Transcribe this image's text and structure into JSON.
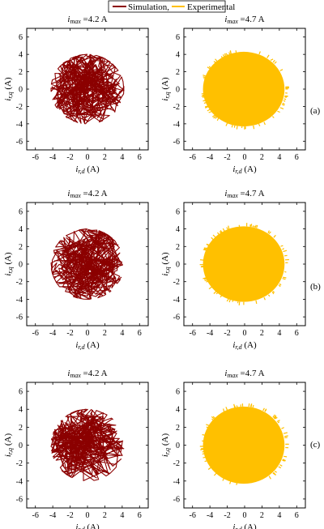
{
  "legend": {
    "items": [
      {
        "label": "Simulation,",
        "color": "#8b0000"
      },
      {
        "label": "Experimental",
        "color": "#ffc000"
      }
    ]
  },
  "row_labels": [
    "(a)",
    "(b)",
    "(c)"
  ],
  "colors": {
    "simulation": "#8b0000",
    "experimental": "#ffc000"
  },
  "chart_data": [
    {
      "type": "scatter",
      "row": "(a)",
      "series": "Simulation",
      "title_main": "i",
      "title_sub": "max",
      "title_rest": " =4.2 A",
      "xlabel_main": "i",
      "xlabel_sub": "r,d",
      "xlabel_unit": " (A)",
      "ylabel_main": "i",
      "ylabel_sub": "r,q",
      "ylabel_unit": " (A)",
      "xlim": [
        -7,
        7
      ],
      "ylim": [
        -7,
        7
      ],
      "xticks": [
        "-6",
        "-4",
        "-2",
        "0",
        "2",
        "4",
        "6"
      ],
      "yticks": [
        "6",
        "4",
        "2",
        "0",
        "-2",
        "-4",
        "-6"
      ],
      "x_extent": [
        -4.2,
        4.2
      ],
      "y_extent": [
        -4.0,
        4.0
      ]
    },
    {
      "type": "scatter",
      "row": "(a)",
      "series": "Experimental",
      "title_main": "i",
      "title_sub": "max",
      "title_rest": " =4.7 A",
      "xlabel_main": "i",
      "xlabel_sub": "r,d",
      "xlabel_unit": " (A)",
      "ylabel_main": "i",
      "ylabel_sub": "r,q",
      "ylabel_unit": " (A)",
      "xlim": [
        -7,
        7
      ],
      "ylim": [
        -7,
        7
      ],
      "xticks": [
        "-6",
        "-4",
        "-2",
        "0",
        "2",
        "4",
        "6"
      ],
      "yticks": [
        "6",
        "4",
        "2",
        "0",
        "-2",
        "-4",
        "-6"
      ],
      "x_extent": [
        -4.7,
        4.7
      ],
      "y_extent": [
        -4.3,
        4.3
      ]
    },
    {
      "type": "scatter",
      "row": "(b)",
      "series": "Simulation",
      "title_main": "i",
      "title_sub": "max",
      "title_rest": " =4.2 A",
      "xlabel_main": "i",
      "xlabel_sub": "r,d",
      "xlabel_unit": " (A)",
      "ylabel_main": "i",
      "ylabel_sub": "r,q",
      "ylabel_unit": " (A)",
      "xlim": [
        -7,
        7
      ],
      "ylim": [
        -7,
        7
      ],
      "xticks": [
        "-6",
        "-4",
        "-2",
        "0",
        "2",
        "4",
        "6"
      ],
      "yticks": [
        "6",
        "4",
        "2",
        "0",
        "-2",
        "-4",
        "-6"
      ],
      "x_extent": [
        -4.2,
        4.2
      ],
      "y_extent": [
        -4.0,
        4.0
      ]
    },
    {
      "type": "scatter",
      "row": "(b)",
      "series": "Experimental",
      "title_main": "i",
      "title_sub": "max",
      "title_rest": " =4.7 A",
      "xlabel_main": "i",
      "xlabel_sub": "r,d",
      "xlabel_unit": " (A)",
      "ylabel_main": "i",
      "ylabel_sub": "r,q",
      "ylabel_unit": " (A)",
      "xlim": [
        -7,
        7
      ],
      "ylim": [
        -7,
        7
      ],
      "xticks": [
        "-6",
        "-4",
        "-2",
        "0",
        "2",
        "4",
        "6"
      ],
      "yticks": [
        "6",
        "4",
        "2",
        "0",
        "-2",
        "-4",
        "-6"
      ],
      "x_extent": [
        -4.7,
        4.7
      ],
      "y_extent": [
        -4.3,
        4.3
      ]
    },
    {
      "type": "scatter",
      "row": "(c)",
      "series": "Simulation",
      "title_main": "i",
      "title_sub": "max",
      "title_rest": " =4.2 A",
      "xlabel_main": "i",
      "xlabel_sub": "r,d",
      "xlabel_unit": " (A)",
      "ylabel_main": "i",
      "ylabel_sub": "r,q",
      "ylabel_unit": " (A)",
      "xlim": [
        -7,
        7
      ],
      "ylim": [
        -7,
        7
      ],
      "xticks": [
        "-6",
        "-4",
        "-2",
        "0",
        "2",
        "4",
        "6"
      ],
      "yticks": [
        "6",
        "4",
        "2",
        "0",
        "-2",
        "-4",
        "-6"
      ],
      "x_extent": [
        -4.2,
        4.2
      ],
      "y_extent": [
        -4.0,
        4.0
      ]
    },
    {
      "type": "scatter",
      "row": "(c)",
      "series": "Experimental",
      "title_main": "i",
      "title_sub": "max",
      "title_rest": " =4.7 A",
      "xlabel_main": "i",
      "xlabel_sub": "r,d",
      "xlabel_unit": " (A)",
      "ylabel_main": "i",
      "ylabel_sub": "r,q",
      "ylabel_unit": " (A)",
      "xlim": [
        -7,
        7
      ],
      "ylim": [
        -7,
        7
      ],
      "xticks": [
        "-6",
        "-4",
        "-2",
        "0",
        "2",
        "4",
        "6"
      ],
      "yticks": [
        "6",
        "4",
        "2",
        "0",
        "-2",
        "-4",
        "-6"
      ],
      "x_extent": [
        -4.7,
        4.7
      ],
      "y_extent": [
        -4.3,
        4.3
      ]
    }
  ]
}
